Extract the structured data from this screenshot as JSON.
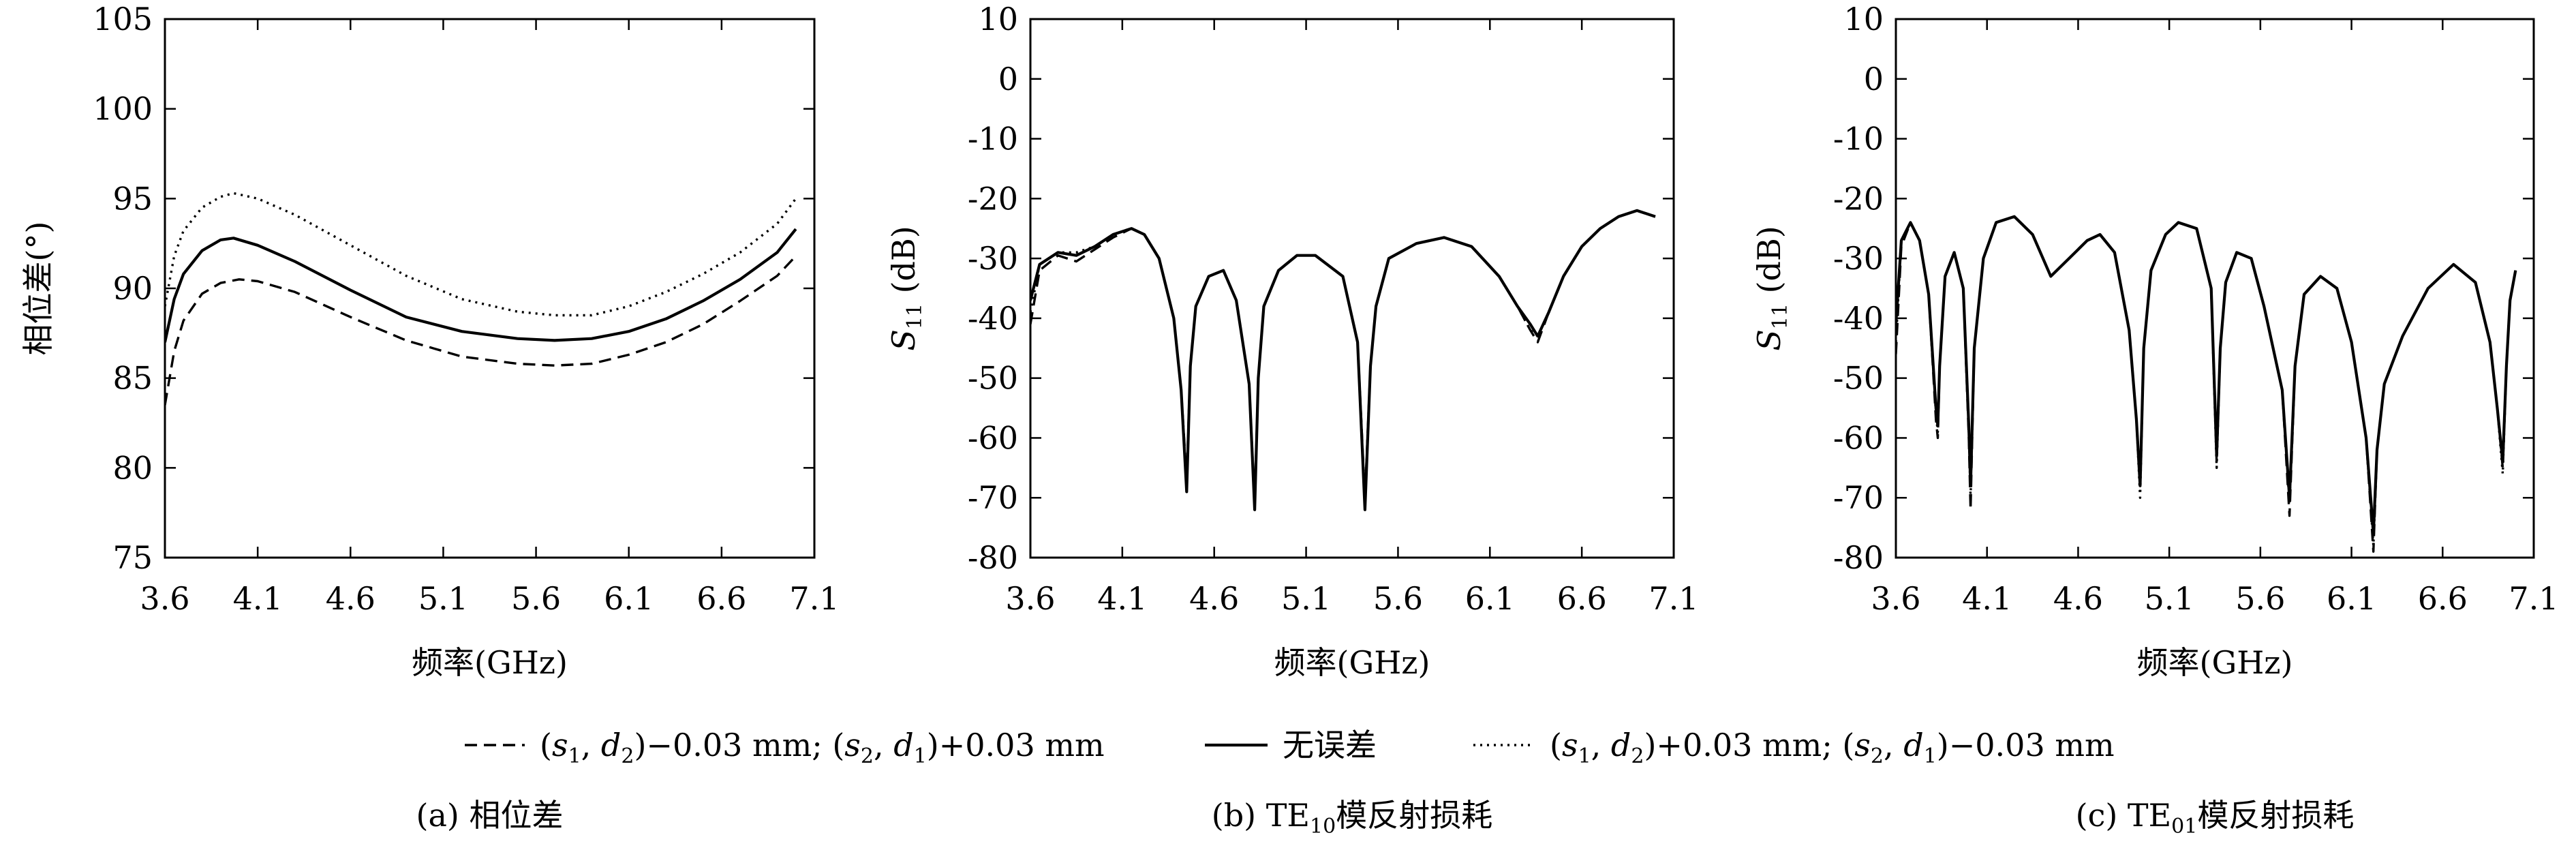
{
  "legend": {
    "items": [
      {
        "label_parts": [
          "(",
          "s",
          "1",
          ", ",
          "d",
          "2",
          ")−0.03 mm; (",
          "s",
          "2",
          ", ",
          "d",
          "1",
          ")+0.03 mm"
        ],
        "style": "dashed"
      },
      {
        "label_parts": [
          "无误差"
        ],
        "style": "solid"
      },
      {
        "label_parts": [
          "(",
          "s",
          "1",
          ", ",
          "d",
          "2",
          ")+0.03 mm; (",
          "s",
          "2",
          ", ",
          "d",
          "1",
          ")−0.03 mm"
        ],
        "style": "dotted"
      }
    ]
  },
  "chart_data": [
    {
      "type": "line",
      "caption": "(a) 相位差",
      "xlabel": "频率(GHz)",
      "ylabel": "相位差(°)",
      "xlim": [
        3.6,
        7.1
      ],
      "ylim": [
        75,
        105
      ],
      "xticks": [
        3.6,
        4.1,
        4.6,
        5.1,
        5.6,
        6.1,
        6.6,
        7.1
      ],
      "yticks": [
        75,
        80,
        85,
        90,
        95,
        100,
        105
      ],
      "grid": false,
      "series": [
        {
          "style": "dashed",
          "x": [
            3.6,
            3.65,
            3.7,
            3.8,
            3.9,
            4.0,
            4.1,
            4.3,
            4.6,
            4.9,
            5.2,
            5.5,
            5.7,
            5.9,
            6.1,
            6.3,
            6.5,
            6.7,
            6.9,
            7.0
          ],
          "y": [
            83.5,
            86.5,
            88.2,
            89.7,
            90.3,
            90.5,
            90.4,
            89.8,
            88.4,
            87.1,
            86.2,
            85.8,
            85.7,
            85.8,
            86.3,
            87.0,
            88.0,
            89.3,
            90.7,
            91.8
          ]
        },
        {
          "style": "solid",
          "x": [
            3.6,
            3.65,
            3.7,
            3.8,
            3.9,
            3.97,
            4.1,
            4.3,
            4.6,
            4.9,
            5.2,
            5.5,
            5.7,
            5.9,
            6.1,
            6.3,
            6.5,
            6.7,
            6.9,
            7.0
          ],
          "y": [
            87.0,
            89.4,
            90.8,
            92.1,
            92.7,
            92.8,
            92.4,
            91.5,
            89.9,
            88.4,
            87.6,
            87.2,
            87.1,
            87.2,
            87.6,
            88.3,
            89.3,
            90.5,
            92.0,
            93.3
          ]
        },
        {
          "style": "dotted",
          "x": [
            3.6,
            3.65,
            3.7,
            3.8,
            3.9,
            3.97,
            4.1,
            4.3,
            4.6,
            4.9,
            5.2,
            5.5,
            5.7,
            5.9,
            6.1,
            6.3,
            6.5,
            6.7,
            6.9,
            7.0
          ],
          "y": [
            89.0,
            91.8,
            93.2,
            94.5,
            95.1,
            95.3,
            95.0,
            94.1,
            92.4,
            90.7,
            89.4,
            88.7,
            88.5,
            88.5,
            89.0,
            89.8,
            90.8,
            92.0,
            93.6,
            95.0
          ]
        }
      ]
    },
    {
      "type": "line",
      "caption_parts": [
        "(b) TE",
        "10",
        "模反射损耗"
      ],
      "xlabel": "频率(GHz)",
      "ylabel_parts": [
        "S",
        "11",
        " (dB)"
      ],
      "xlim": [
        3.6,
        7.1
      ],
      "ylim": [
        -80,
        10
      ],
      "xticks": [
        3.6,
        4.1,
        4.6,
        5.1,
        5.6,
        6.1,
        6.6,
        7.1
      ],
      "yticks": [
        -80,
        -70,
        -60,
        -50,
        -40,
        -30,
        -20,
        -10,
        0,
        10
      ],
      "grid": false,
      "series": [
        {
          "style": "solid",
          "x": [
            3.6,
            3.65,
            3.75,
            3.85,
            3.95,
            4.05,
            4.15,
            4.22,
            4.3,
            4.38,
            4.42,
            4.45,
            4.47,
            4.5,
            4.57,
            4.65,
            4.72,
            4.79,
            4.82,
            4.84,
            4.87,
            4.95,
            5.05,
            5.15,
            5.3,
            5.38,
            5.42,
            5.45,
            5.48,
            5.55,
            5.7,
            5.85,
            6.0,
            6.15,
            6.25,
            6.32,
            6.36,
            6.42,
            6.5,
            6.6,
            6.7,
            6.8,
            6.9,
            7.0
          ],
          "y": [
            -37,
            -31,
            -29,
            -29.5,
            -28,
            -26,
            -25,
            -26,
            -30,
            -40,
            -52,
            -69,
            -48,
            -38,
            -33,
            -32,
            -37,
            -51,
            -72,
            -50,
            -38,
            -32,
            -29.5,
            -29.5,
            -33,
            -44,
            -72,
            -48,
            -38,
            -30,
            -27.5,
            -26.5,
            -28,
            -33,
            -38,
            -41,
            -43,
            -39,
            -33,
            -28,
            -25,
            -23,
            -22,
            -23
          ]
        },
        {
          "style": "dashed",
          "x": [
            3.6,
            3.65,
            3.75,
            3.85,
            3.95,
            4.05,
            4.15,
            4.22,
            4.3,
            4.38,
            4.42,
            4.45,
            4.47,
            4.5,
            4.57,
            4.65,
            4.72,
            4.79,
            4.82,
            4.84,
            4.87,
            4.95,
            5.05,
            5.15,
            5.3,
            5.38,
            5.42,
            5.45,
            5.48,
            5.55,
            5.7,
            5.85,
            6.0,
            6.15,
            6.25,
            6.32,
            6.36,
            6.42,
            6.5,
            6.6,
            6.7,
            6.8,
            6.9,
            7.0
          ],
          "y": [
            -41,
            -32,
            -29.5,
            -30.5,
            -28.5,
            -26.5,
            -25,
            -26,
            -30,
            -40,
            -52,
            -67,
            -48,
            -38,
            -33,
            -32,
            -37,
            -51,
            -71,
            -50,
            -38,
            -32,
            -29.5,
            -29.5,
            -33,
            -44,
            -70,
            -48,
            -38,
            -30,
            -27.5,
            -26.5,
            -28,
            -33,
            -38,
            -42,
            -44,
            -39,
            -33,
            -28,
            -25,
            -23,
            -22,
            -23
          ]
        },
        {
          "style": "dotted",
          "x": [
            3.6,
            3.65,
            3.75,
            3.85,
            3.95,
            4.05,
            4.15,
            4.22,
            4.3,
            4.38,
            4.42,
            4.45,
            4.47,
            4.5,
            4.57,
            4.65,
            4.72,
            4.79,
            4.82,
            4.84,
            4.87,
            4.95,
            5.05,
            5.15,
            5.3,
            5.38,
            5.42,
            5.45,
            5.48,
            5.55,
            5.7,
            5.85,
            6.0,
            6.15,
            6.25,
            6.32,
            6.36,
            6.42,
            6.5,
            6.6,
            6.7,
            6.8,
            6.9,
            7.0
          ],
          "y": [
            -39,
            -31,
            -29,
            -29,
            -28,
            -26,
            -25,
            -26,
            -30,
            -40,
            -52,
            -68,
            -48,
            -38,
            -33,
            -32,
            -37,
            -51,
            -72,
            -50,
            -38,
            -32,
            -29.5,
            -29.5,
            -33,
            -44,
            -71,
            -48,
            -38,
            -30,
            -27.5,
            -26.5,
            -28,
            -33,
            -38,
            -42,
            -43,
            -39,
            -33,
            -28,
            -25,
            -23,
            -22,
            -23
          ]
        }
      ]
    },
    {
      "type": "line",
      "caption_parts": [
        "(c) TE",
        "01",
        "模反射损耗"
      ],
      "xlabel": "频率(GHz)",
      "ylabel_parts": [
        "S",
        "11",
        " (dB)"
      ],
      "xlim": [
        3.6,
        7.1
      ],
      "ylim": [
        -80,
        10
      ],
      "xticks": [
        3.6,
        4.1,
        4.6,
        5.1,
        5.6,
        6.1,
        6.6,
        7.1
      ],
      "yticks": [
        -80,
        -70,
        -60,
        -50,
        -40,
        -30,
        -20,
        -10,
        0,
        10
      ],
      "grid": false,
      "series": [
        {
          "style": "solid",
          "x": [
            3.6,
            3.63,
            3.68,
            3.73,
            3.78,
            3.82,
            3.83,
            3.84,
            3.87,
            3.92,
            3.97,
            4.0,
            4.01,
            4.03,
            4.08,
            4.15,
            4.25,
            4.35,
            4.45,
            4.55,
            4.65,
            4.72,
            4.8,
            4.88,
            4.92,
            4.94,
            4.96,
            5.0,
            5.08,
            5.15,
            5.25,
            5.33,
            5.36,
            5.38,
            5.41,
            5.47,
            5.55,
            5.62,
            5.72,
            5.76,
            5.79,
            5.84,
            5.93,
            6.02,
            6.1,
            6.18,
            6.22,
            6.24,
            6.28,
            6.38,
            6.52,
            6.66,
            6.78,
            6.86,
            6.9,
            6.93,
            6.95,
            6.97,
            7.0
          ],
          "y": [
            -41,
            -27,
            -24,
            -27,
            -36,
            -55,
            -58,
            -48,
            -33,
            -29,
            -35,
            -58,
            -68,
            -45,
            -30,
            -24,
            -23,
            -26,
            -33,
            -30,
            -27,
            -26,
            -29,
            -42,
            -57,
            -68,
            -45,
            -32,
            -26,
            -24,
            -25,
            -35,
            -63,
            -45,
            -34,
            -29,
            -30,
            -38,
            -52,
            -70,
            -48,
            -36,
            -33,
            -35,
            -44,
            -60,
            -76,
            -62,
            -51,
            -43,
            -35,
            -31,
            -34,
            -44,
            -55,
            -64,
            -48,
            -37,
            -32
          ]
        },
        {
          "style": "dashed",
          "x": [
            3.6,
            3.63,
            3.68,
            3.73,
            3.78,
            3.82,
            3.83,
            3.84,
            3.87,
            3.92,
            3.97,
            4.0,
            4.01,
            4.03,
            4.08,
            4.15,
            4.25,
            4.35,
            4.45,
            4.55,
            4.65,
            4.72,
            4.8,
            4.88,
            4.92,
            4.94,
            4.96,
            5.0,
            5.08,
            5.15,
            5.25,
            5.33,
            5.36,
            5.38,
            5.41,
            5.47,
            5.55,
            5.62,
            5.72,
            5.76,
            5.79,
            5.84,
            5.93,
            6.02,
            6.1,
            6.18,
            6.22,
            6.24,
            6.28,
            6.38,
            6.52,
            6.66,
            6.78,
            6.86,
            6.9,
            6.93,
            6.95,
            6.97,
            7.0
          ],
          "y": [
            -46,
            -28,
            -24,
            -27,
            -36,
            -57,
            -60,
            -48,
            -33,
            -29,
            -35,
            -60,
            -72,
            -45,
            -30,
            -24,
            -23,
            -26,
            -33,
            -30,
            -27,
            -26,
            -29,
            -42,
            -57,
            -67,
            -45,
            -32,
            -26,
            -24,
            -25,
            -35,
            -64,
            -45,
            -34,
            -29,
            -30,
            -38,
            -52,
            -73,
            -48,
            -36,
            -33,
            -35,
            -44,
            -60,
            -79,
            -62,
            -51,
            -43,
            -35,
            -31,
            -34,
            -44,
            -55,
            -65,
            -48,
            -37,
            -32
          ]
        },
        {
          "style": "dotted",
          "x": [
            3.6,
            3.63,
            3.68,
            3.73,
            3.78,
            3.82,
            3.83,
            3.84,
            3.87,
            3.92,
            3.97,
            4.0,
            4.01,
            4.03,
            4.08,
            4.15,
            4.25,
            4.35,
            4.45,
            4.55,
            4.65,
            4.72,
            4.8,
            4.88,
            4.92,
            4.94,
            4.96,
            5.0,
            5.08,
            5.15,
            5.25,
            5.33,
            5.36,
            5.38,
            5.41,
            5.47,
            5.55,
            5.62,
            5.72,
            5.76,
            5.79,
            5.84,
            5.93,
            6.02,
            6.1,
            6.18,
            6.22,
            6.24,
            6.28,
            6.38,
            6.52,
            6.66,
            6.78,
            6.86,
            6.9,
            6.93,
            6.95,
            6.97,
            7.0
          ],
          "y": [
            -44,
            -27,
            -24,
            -27,
            -36,
            -56,
            -59,
            -48,
            -33,
            -29,
            -35,
            -59,
            -70,
            -45,
            -30,
            -24,
            -23,
            -26,
            -33,
            -30,
            -27,
            -26,
            -29,
            -42,
            -57,
            -70,
            -45,
            -32,
            -26,
            -24,
            -25,
            -35,
            -65,
            -45,
            -34,
            -29,
            -30,
            -38,
            -52,
            -71,
            -48,
            -36,
            -33,
            -35,
            -44,
            -60,
            -78,
            -62,
            -51,
            -43,
            -35,
            -31,
            -34,
            -44,
            -55,
            -66,
            -48,
            -37,
            -32
          ]
        }
      ]
    }
  ]
}
